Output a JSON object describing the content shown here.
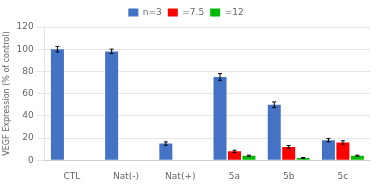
{
  "chart_data": {
    "type": "bar",
    "categories": [
      "CTL",
      "Nat(-)",
      "Nat(+)",
      "5a",
      "5b",
      "5c"
    ],
    "series": [
      {
        "name": "n=3",
        "color": "#4472C4",
        "values": [
          100,
          98,
          15,
          75,
          50,
          18
        ],
        "error": [
          2.5,
          2.0,
          1.5,
          3.0,
          2.5,
          1.5
        ]
      },
      {
        "name": "=7.5",
        "color": "#FF0000",
        "values": [
          null,
          null,
          null,
          8,
          12,
          16
        ],
        "error": [
          null,
          null,
          null,
          1.0,
          1.2,
          1.5
        ]
      },
      {
        "name": "=12",
        "color": "#00BB00",
        "values": [
          null,
          null,
          null,
          4,
          2,
          4
        ],
        "error": [
          null,
          null,
          null,
          0.5,
          0.4,
          0.5
        ]
      }
    ],
    "ylabel": "VEGF Expression (% of control)",
    "ylim": [
      0,
      120
    ],
    "yticks": [
      0,
      20,
      40,
      60,
      80,
      100,
      120
    ],
    "grid": true,
    "legend": "top"
  }
}
